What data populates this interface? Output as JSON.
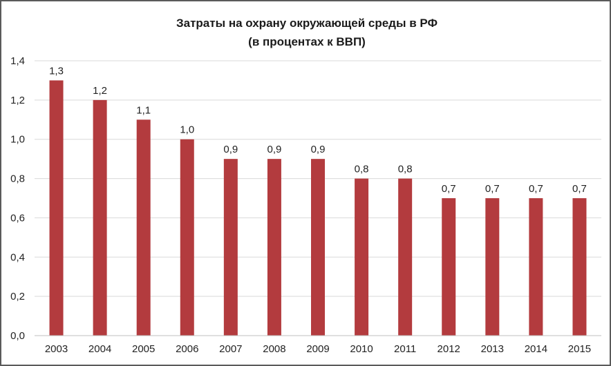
{
  "chart_data": {
    "type": "bar",
    "title": "Затраты на охрану окружающей среды в РФ",
    "subtitle": "(в процентах к ВВП)",
    "xlabel": "",
    "ylabel": "",
    "categories": [
      "2003",
      "2004",
      "2005",
      "2006",
      "2007",
      "2008",
      "2009",
      "2010",
      "2011",
      "2012",
      "2013",
      "2014",
      "2015"
    ],
    "values": [
      1.3,
      1.2,
      1.1,
      1.0,
      0.9,
      0.9,
      0.9,
      0.8,
      0.8,
      0.7,
      0.7,
      0.7,
      0.7
    ],
    "data_labels": [
      "1,3",
      "1,2",
      "1,1",
      "1,0",
      "0,9",
      "0,9",
      "0,9",
      "0,8",
      "0,8",
      "0,7",
      "0,7",
      "0,7",
      "0,7"
    ],
    "ylim": [
      0,
      1.4
    ],
    "yticks": [
      0,
      0.2,
      0.4,
      0.6,
      0.8,
      1.0,
      1.2,
      1.4
    ],
    "ytick_labels": [
      "0,0",
      "0,2",
      "0,4",
      "0,6",
      "0,8",
      "1,0",
      "1,2",
      "1,4"
    ],
    "grid": true,
    "legend": "none",
    "colors": {
      "bar": "#b33b3e",
      "grid": "#d9d9d9",
      "axis": "#bfbfbf"
    }
  }
}
